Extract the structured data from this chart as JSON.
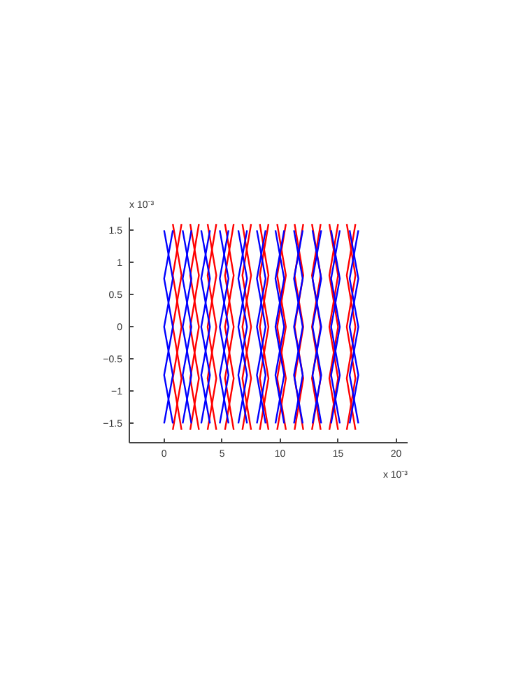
{
  "chart_data": {
    "type": "line",
    "xlim": [
      -3,
      21
    ],
    "ylim": [
      -1.8,
      1.7
    ],
    "xticks": [
      0,
      5,
      10,
      15,
      20
    ],
    "yticks": [
      -1.5,
      -1,
      -0.5,
      0,
      0.5,
      1,
      1.5
    ],
    "grid": false,
    "marker": "none",
    "line_style": "solid",
    "annotations": [
      "x 10⁻³",
      "x 10⁻³"
    ],
    "series": [
      {
        "color": "#ff0000",
        "x": [
          0.75,
          1.5,
          0.75,
          1.5,
          0.75
        ],
        "values": [
          1.6,
          0.8,
          0,
          -0.8,
          -1.6
        ]
      },
      {
        "color": "#ff0000",
        "x": [
          1.5,
          0.75,
          1.5,
          0.75,
          1.5
        ],
        "values": [
          1.6,
          0.8,
          0,
          -0.8,
          -1.6
        ]
      },
      {
        "color": "#ff0000",
        "x": [
          2.25,
          3,
          2.25,
          3,
          2.25
        ],
        "values": [
          1.6,
          0.8,
          0,
          -0.8,
          -1.6
        ]
      },
      {
        "color": "#ff0000",
        "x": [
          3,
          2.25,
          3,
          2.25,
          3
        ],
        "values": [
          1.6,
          0.8,
          0,
          -0.8,
          -1.6
        ]
      },
      {
        "color": "#ff0000",
        "x": [
          3.75,
          4.5,
          3.75,
          4.5,
          3.75
        ],
        "values": [
          1.6,
          0.8,
          0,
          -0.8,
          -1.6
        ]
      },
      {
        "color": "#ff0000",
        "x": [
          4.5,
          3.75,
          4.5,
          3.75,
          4.5
        ],
        "values": [
          1.6,
          0.8,
          0,
          -0.8,
          -1.6
        ]
      },
      {
        "color": "#ff0000",
        "x": [
          5.25,
          6,
          5.25,
          6,
          5.25
        ],
        "values": [
          1.6,
          0.8,
          0,
          -0.8,
          -1.6
        ]
      },
      {
        "color": "#ff0000",
        "x": [
          6,
          5.25,
          6,
          5.25,
          6
        ],
        "values": [
          1.6,
          0.8,
          0,
          -0.8,
          -1.6
        ]
      },
      {
        "color": "#ff0000",
        "x": [
          6.75,
          7.5,
          6.75,
          7.5,
          6.75
        ],
        "values": [
          1.6,
          0.8,
          0,
          -0.8,
          -1.6
        ]
      },
      {
        "color": "#ff0000",
        "x": [
          7.5,
          6.75,
          7.5,
          6.75,
          7.5
        ],
        "values": [
          1.6,
          0.8,
          0,
          -0.8,
          -1.6
        ]
      },
      {
        "color": "#ff0000",
        "x": [
          8.25,
          9,
          8.25,
          9,
          8.25
        ],
        "values": [
          1.6,
          0.8,
          0,
          -0.8,
          -1.6
        ]
      },
      {
        "color": "#ff0000",
        "x": [
          9,
          8.25,
          9,
          8.25,
          9
        ],
        "values": [
          1.6,
          0.8,
          0,
          -0.8,
          -1.6
        ]
      },
      {
        "color": "#ff0000",
        "x": [
          9.75,
          10.5,
          9.75,
          10.5,
          9.75
        ],
        "values": [
          1.6,
          0.8,
          0,
          -0.8,
          -1.6
        ]
      },
      {
        "color": "#ff0000",
        "x": [
          10.5,
          9.75,
          10.5,
          9.75,
          10.5
        ],
        "values": [
          1.6,
          0.8,
          0,
          -0.8,
          -1.6
        ]
      },
      {
        "color": "#ff0000",
        "x": [
          11.25,
          12,
          11.25,
          12,
          11.25
        ],
        "values": [
          1.6,
          0.8,
          0,
          -0.8,
          -1.6
        ]
      },
      {
        "color": "#ff0000",
        "x": [
          12,
          11.25,
          12,
          11.25,
          12
        ],
        "values": [
          1.6,
          0.8,
          0,
          -0.8,
          -1.6
        ]
      },
      {
        "color": "#ff0000",
        "x": [
          12.75,
          13.5,
          12.75,
          13.5,
          12.75
        ],
        "values": [
          1.6,
          0.8,
          0,
          -0.8,
          -1.6
        ]
      },
      {
        "color": "#ff0000",
        "x": [
          13.5,
          12.75,
          13.5,
          12.75,
          13.5
        ],
        "values": [
          1.6,
          0.8,
          0,
          -0.8,
          -1.6
        ]
      },
      {
        "color": "#ff0000",
        "x": [
          14.25,
          15,
          14.25,
          15,
          14.25
        ],
        "values": [
          1.6,
          0.8,
          0,
          -0.8,
          -1.6
        ]
      },
      {
        "color": "#ff0000",
        "x": [
          15,
          14.25,
          15,
          14.25,
          15
        ],
        "values": [
          1.6,
          0.8,
          0,
          -0.8,
          -1.6
        ]
      },
      {
        "color": "#ff0000",
        "x": [
          15.75,
          16.5,
          15.75,
          16.5,
          15.75
        ],
        "values": [
          1.6,
          0.8,
          0,
          -0.8,
          -1.6
        ]
      },
      {
        "color": "#ff0000",
        "x": [
          16.5,
          15.75,
          16.5,
          15.75,
          16.5
        ],
        "values": [
          1.6,
          0.8,
          0,
          -0.8,
          -1.6
        ]
      },
      {
        "color": "#0000ff",
        "x": [
          0,
          0.75,
          0,
          0.75,
          0
        ],
        "values": [
          1.5,
          0.75,
          0,
          -0.75,
          -1.5
        ]
      },
      {
        "color": "#0000ff",
        "x": [
          0.75,
          0,
          0.75,
          0,
          0.75
        ],
        "values": [
          1.5,
          0.75,
          0,
          -0.75,
          -1.5
        ]
      },
      {
        "color": "#0000ff",
        "x": [
          1.6,
          2.35,
          1.6,
          2.35,
          1.6
        ],
        "values": [
          1.5,
          0.75,
          0,
          -0.75,
          -1.5
        ]
      },
      {
        "color": "#0000ff",
        "x": [
          2.35,
          1.6,
          2.35,
          1.6,
          2.35
        ],
        "values": [
          1.5,
          0.75,
          0,
          -0.75,
          -1.5
        ]
      },
      {
        "color": "#0000ff",
        "x": [
          3.2,
          3.95,
          3.2,
          3.95,
          3.2
        ],
        "values": [
          1.5,
          0.75,
          0,
          -0.75,
          -1.5
        ]
      },
      {
        "color": "#0000ff",
        "x": [
          3.95,
          3.2,
          3.95,
          3.2,
          3.95
        ],
        "values": [
          1.5,
          0.75,
          0,
          -0.75,
          -1.5
        ]
      },
      {
        "color": "#0000ff",
        "x": [
          4.8,
          5.55,
          4.8,
          5.55,
          4.8
        ],
        "values": [
          1.5,
          0.75,
          0,
          -0.75,
          -1.5
        ]
      },
      {
        "color": "#0000ff",
        "x": [
          5.55,
          4.8,
          5.55,
          4.8,
          5.55
        ],
        "values": [
          1.5,
          0.75,
          0,
          -0.75,
          -1.5
        ]
      },
      {
        "color": "#0000ff",
        "x": [
          6.4,
          7.15,
          6.4,
          7.15,
          6.4
        ],
        "values": [
          1.5,
          0.75,
          0,
          -0.75,
          -1.5
        ]
      },
      {
        "color": "#0000ff",
        "x": [
          7.15,
          6.4,
          7.15,
          6.4,
          7.15
        ],
        "values": [
          1.5,
          0.75,
          0,
          -0.75,
          -1.5
        ]
      },
      {
        "color": "#0000ff",
        "x": [
          8,
          8.75,
          8,
          8.75,
          8
        ],
        "values": [
          1.5,
          0.75,
          0,
          -0.75,
          -1.5
        ]
      },
      {
        "color": "#0000ff",
        "x": [
          8.75,
          8,
          8.75,
          8,
          8.75
        ],
        "values": [
          1.5,
          0.75,
          0,
          -0.75,
          -1.5
        ]
      },
      {
        "color": "#0000ff",
        "x": [
          9.6,
          10.35,
          9.6,
          10.35,
          9.6
        ],
        "values": [
          1.5,
          0.75,
          0,
          -0.75,
          -1.5
        ]
      },
      {
        "color": "#0000ff",
        "x": [
          10.35,
          9.6,
          10.35,
          9.6,
          10.35
        ],
        "values": [
          1.5,
          0.75,
          0,
          -0.75,
          -1.5
        ]
      },
      {
        "color": "#0000ff",
        "x": [
          11.2,
          11.95,
          11.2,
          11.95,
          11.2
        ],
        "values": [
          1.5,
          0.75,
          0,
          -0.75,
          -1.5
        ]
      },
      {
        "color": "#0000ff",
        "x": [
          11.95,
          11.2,
          11.95,
          11.2,
          11.95
        ],
        "values": [
          1.5,
          0.75,
          0,
          -0.75,
          -1.5
        ]
      },
      {
        "color": "#0000ff",
        "x": [
          12.8,
          13.55,
          12.8,
          13.55,
          12.8
        ],
        "values": [
          1.5,
          0.75,
          0,
          -0.75,
          -1.5
        ]
      },
      {
        "color": "#0000ff",
        "x": [
          13.55,
          12.8,
          13.55,
          12.8,
          13.55
        ],
        "values": [
          1.5,
          0.75,
          0,
          -0.75,
          -1.5
        ]
      },
      {
        "color": "#0000ff",
        "x": [
          14.4,
          15.15,
          14.4,
          15.15,
          14.4
        ],
        "values": [
          1.5,
          0.75,
          0,
          -0.75,
          -1.5
        ]
      },
      {
        "color": "#0000ff",
        "x": [
          15.15,
          14.4,
          15.15,
          14.4,
          15.15
        ],
        "values": [
          1.5,
          0.75,
          0,
          -0.75,
          -1.5
        ]
      },
      {
        "color": "#0000ff",
        "x": [
          16,
          16.75,
          16,
          16.75,
          16
        ],
        "values": [
          1.5,
          0.75,
          0,
          -0.75,
          -1.5
        ]
      },
      {
        "color": "#0000ff",
        "x": [
          16.75,
          16,
          16.75,
          16,
          16.75
        ],
        "values": [
          1.5,
          0.75,
          0,
          -0.75,
          -1.5
        ]
      }
    ]
  }
}
